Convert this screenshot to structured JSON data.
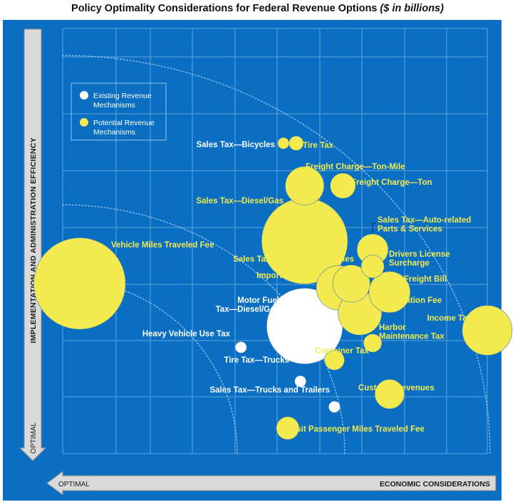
{
  "title": "Policy Optimality Considerations for Federal Revenue Options",
  "title_units": "($ in billions)",
  "chart_data": {
    "type": "bubble-scatter",
    "xlabel": "ECONOMIC CONSIDERATIONS",
    "ylabel": "IMPLEMENTATION AND ADMINISTRATION EFFICIENCY",
    "x_optimal_label": "OPTIMAL",
    "y_optimal_label": "OPTIMAL",
    "xlim": [
      0,
      10
    ],
    "ylim": [
      0,
      10
    ],
    "grid": true,
    "legend": {
      "placement": "top-left",
      "entries": [
        {
          "label_lines": [
            "Existing Revenue",
            "Mechanisms"
          ],
          "color": "#ffffff"
        },
        {
          "label_lines": [
            "Potential Revenue",
            "Mechanisms"
          ],
          "color": "#f2ea4e"
        }
      ]
    },
    "points": [
      {
        "name": "Sales Tax—Bicycles",
        "x": 5.2,
        "y": 7.3,
        "size": 0.2,
        "existing": false
      },
      {
        "name": "Tire Tax",
        "x": 5.5,
        "y": 7.3,
        "size": 0.6,
        "existing": false
      },
      {
        "name": "Freight Charge—Ton-Mile",
        "x": 5.7,
        "y": 6.3,
        "size": 12,
        "existing": false
      },
      {
        "name": "Freight Charge—Ton",
        "x": 6.6,
        "y": 6.3,
        "size": 4,
        "existing": false
      },
      {
        "name": "Sales Tax—Diesel/Gas",
        "x": 5.7,
        "y": 5.0,
        "size": 75,
        "existing": false
      },
      {
        "name": "Sales Tax—Auto-related Parts & Services",
        "x": 7.3,
        "y": 4.8,
        "size": 7,
        "existing": false
      },
      {
        "name": "Drivers License Surcharge",
        "x": 7.3,
        "y": 4.4,
        "size": 3,
        "existing": false
      },
      {
        "name": "Vehicle Miles Traveled Fee",
        "x": 0.4,
        "y": 4.0,
        "size": 86,
        "existing": false
      },
      {
        "name": "Sales Tax—Light Duty Vehicles",
        "x": 6.8,
        "y": 4.0,
        "size": 11,
        "existing": false
      },
      {
        "name": "Imported Oil Tax",
        "x": 6.5,
        "y": 3.9,
        "size": 17,
        "existing": false
      },
      {
        "name": "Freight Bill",
        "x": 7.7,
        "y": 3.8,
        "size": 14,
        "existing": false
      },
      {
        "name": "Registration Fee",
        "x": 7.0,
        "y": 3.3,
        "size": 16,
        "existing": false
      },
      {
        "name": "Motor Fuel Tax—Diesel/Gas",
        "x": 5.7,
        "y": 3.0,
        "size": 57,
        "existing": true
      },
      {
        "name": "Income Tax",
        "x": 10.0,
        "y": 2.9,
        "size": 22,
        "existing": false
      },
      {
        "name": "Harbor Maintenance Tax",
        "x": 7.3,
        "y": 2.6,
        "size": 1.5,
        "existing": false
      },
      {
        "name": "Heavy Vehicle Use Tax",
        "x": 4.2,
        "y": 2.5,
        "size": 0.2,
        "existing": true
      },
      {
        "name": "Container Tax",
        "x": 6.4,
        "y": 2.2,
        "size": 2,
        "existing": false
      },
      {
        "name": "Tire Tax—Trucks",
        "x": 5.6,
        "y": 1.7,
        "size": 0.2,
        "existing": true
      },
      {
        "name": "Customs Revenues",
        "x": 7.7,
        "y": 1.4,
        "size": 6,
        "existing": false
      },
      {
        "name": "Sales Tax—Trucks and Trailers",
        "x": 6.4,
        "y": 1.1,
        "size": 0.2,
        "existing": true
      },
      {
        "name": "Transit Passenger Miles Traveled Fee",
        "x": 5.3,
        "y": 0.6,
        "size": 3,
        "existing": false
      }
    ]
  },
  "labels": [
    {
      "lines": [
        "Sales Tax—Bicycles"
      ]
    },
    {
      "lines": [
        "Tire Tax"
      ]
    },
    {
      "lines": [
        "Freight Charge—Ton-Mile"
      ]
    },
    {
      "lines": [
        "Freight Charge—Ton"
      ]
    },
    {
      "lines": [
        "Sales Tax—Diesel/Gas"
      ]
    },
    {
      "lines": [
        "Sales Tax—Auto-related",
        "Parts & Services"
      ]
    },
    {
      "lines": [
        "Drivers License",
        "Surcharge"
      ]
    },
    {
      "lines": [
        "Vehicle Miles Traveled Fee"
      ]
    },
    {
      "lines": [
        "Sales Tax—Light Duty Vehicles"
      ]
    },
    {
      "lines": [
        "Imported Oil Tax"
      ]
    },
    {
      "lines": [
        "Freight Bill"
      ]
    },
    {
      "lines": [
        "Registration Fee"
      ]
    },
    {
      "lines": [
        "Motor Fuel",
        "Tax—Diesel/Gas"
      ]
    },
    {
      "lines": [
        "Income Tax"
      ]
    },
    {
      "lines": [
        "Harbor",
        "Maintenance Tax"
      ]
    },
    {
      "lines": [
        "Heavy Vehicle Use Tax"
      ]
    },
    {
      "lines": [
        "Container Tax"
      ]
    },
    {
      "lines": [
        "Tire Tax—Trucks"
      ]
    },
    {
      "lines": [
        "Customs Revenues"
      ]
    },
    {
      "lines": [
        "Sales Tax—Trucks and Trailers"
      ]
    },
    {
      "lines": [
        "Transit Passenger Miles Traveled Fee"
      ]
    }
  ],
  "colors": {
    "background": "#0a6fc2",
    "grid": "#4d9ad8",
    "arc": "#a9cdee",
    "potential": "#f2ea4e",
    "existing": "#ffffff",
    "label_yellow": "#f2ea4e",
    "label_white": "#ffffff",
    "arrow_fill": "#d9d9d9",
    "arrow_stroke": "#8a8a8a"
  }
}
